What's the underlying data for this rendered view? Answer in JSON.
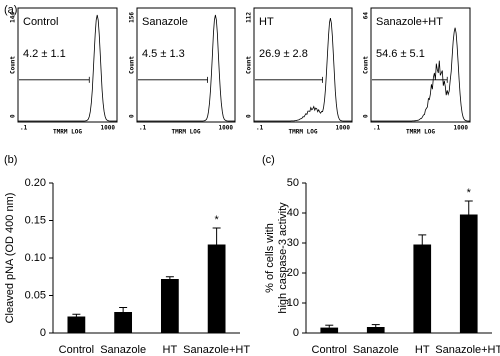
{
  "panel_a": {
    "label": "(a)",
    "y_label": "Count",
    "x_label": "TMRM LOG",
    "x_min_label": ".1",
    "x_max_label": "1000",
    "y_min_label": "0",
    "plots": [
      {
        "name": "Control",
        "y_max_label": "144",
        "stat": "4.2 ± 1.1"
      },
      {
        "name": "Sanazole",
        "y_max_label": "156",
        "stat": "4.5 ± 1.3"
      },
      {
        "name": "HT",
        "y_max_label": "112",
        "stat": "26.9 ± 2.8"
      },
      {
        "name": "Sanazole+HT",
        "y_max_label": "64",
        "stat": "54.6 ± 5.1"
      }
    ]
  },
  "chart_data": [
    {
      "type": "bar",
      "panel_label": "(b)",
      "ylabel": [
        "Cleaved pNA (OD 400 nm)"
      ],
      "categories": [
        "Control",
        "Sanazole",
        "HT",
        "Sanazole+HT"
      ],
      "values": [
        0.022,
        0.028,
        0.072,
        0.118
      ],
      "errors": [
        0.003,
        0.006,
        0.003,
        0.022
      ],
      "value_annotations": [
        null,
        null,
        null,
        "*"
      ],
      "color": "#000000",
      "ylim": [
        0,
        0.2
      ],
      "yticks": [
        0,
        0.05,
        {
          "value": 0.1,
          "label": "0.10"
        },
        0.15,
        {
          "value": 0.2,
          "label": "0.20"
        }
      ]
    },
    {
      "type": "bar",
      "panel_label": "(c)",
      "ylabel": [
        "% of cells with",
        "high caspase-3 activity"
      ],
      "categories": [
        "Control",
        "Sanazole",
        "HT",
        "Sanazole+HT"
      ],
      "values": [
        1.8,
        2,
        29.5,
        39.5
      ],
      "errors": [
        0.8,
        0.8,
        3.2,
        4.5
      ],
      "value_annotations": [
        null,
        null,
        null,
        "*"
      ],
      "color": "#000000",
      "ylim": [
        0,
        50
      ],
      "yticks": [
        0,
        10,
        20,
        30,
        40,
        50
      ]
    }
  ]
}
